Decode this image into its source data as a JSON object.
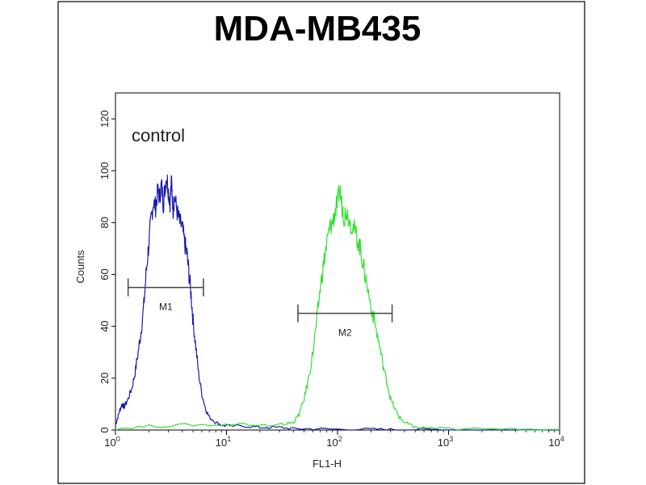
{
  "chart_data": {
    "type": "line",
    "title": "MDA-MB435",
    "xlabel": "FL1-H",
    "ylabel": "Counts",
    "x_scale": "log",
    "xlim": [
      1,
      10000
    ],
    "ylim": [
      0,
      130
    ],
    "x_ticks": [
      {
        "base": "10",
        "exp": "0",
        "value": 1
      },
      {
        "base": "10",
        "exp": "1",
        "value": 10
      },
      {
        "base": "10",
        "exp": "2",
        "value": 100
      },
      {
        "base": "10",
        "exp": "3",
        "value": 1000
      },
      {
        "base": "10",
        "exp": "4",
        "value": 10000
      }
    ],
    "y_ticks": [
      0,
      20,
      40,
      60,
      80,
      100,
      120
    ],
    "annotation": "control",
    "markers": [
      {
        "label": "M1",
        "x_start": 1.3,
        "x_end": 6.2,
        "y": 55
      },
      {
        "label": "M2",
        "x_start": 44,
        "x_end": 310,
        "y": 45
      }
    ],
    "series": [
      {
        "color": "#1a1aa8",
        "x": [
          1.0,
          1.05,
          1.1,
          1.15,
          1.2,
          1.3,
          1.4,
          1.5,
          1.6,
          1.7,
          1.8,
          1.9,
          2.0,
          2.1,
          2.2,
          2.3,
          2.4,
          2.5,
          2.6,
          2.7,
          2.8,
          2.9,
          3.0,
          3.1,
          3.2,
          3.3,
          3.4,
          3.6,
          3.8,
          4.0,
          4.2,
          4.4,
          4.6,
          4.8,
          5.0,
          5.3,
          5.6,
          6.0,
          6.5,
          7.0,
          8.0,
          9.0,
          10,
          15,
          20,
          30,
          40,
          60,
          100,
          200,
          300,
          500,
          1000,
          3000,
          10000
        ],
        "y": [
          2,
          5,
          8,
          10,
          9,
          12,
          16,
          22,
          30,
          38,
          48,
          62,
          72,
          82,
          88,
          86,
          92,
          90,
          95,
          87,
          94,
          98,
          92,
          88,
          96,
          85,
          90,
          84,
          80,
          78,
          72,
          68,
          60,
          52,
          42,
          32,
          22,
          14,
          8,
          5,
          3,
          2,
          1.5,
          1.5,
          1,
          1,
          0.5,
          0.5,
          0.3,
          0.3,
          0.2,
          0.2,
          0.1,
          0.1,
          0.1
        ]
      },
      {
        "color": "#33e033",
        "x": [
          1.0,
          2.0,
          5.0,
          10,
          15,
          20,
          25,
          30,
          35,
          40,
          45,
          50,
          55,
          60,
          65,
          70,
          75,
          80,
          85,
          90,
          95,
          100,
          105,
          110,
          115,
          120,
          130,
          140,
          150,
          160,
          170,
          180,
          200,
          220,
          240,
          260,
          280,
          300,
          330,
          360,
          400,
          450,
          500,
          700,
          1000,
          3000,
          10000
        ],
        "y": [
          0.5,
          1.5,
          2,
          2,
          2.5,
          2,
          1.5,
          2,
          2.5,
          3,
          6,
          12,
          20,
          30,
          42,
          55,
          64,
          72,
          78,
          80,
          84,
          88,
          93,
          86,
          82,
          85,
          80,
          78,
          74,
          70,
          64,
          58,
          48,
          40,
          32,
          24,
          18,
          12,
          8,
          5,
          3,
          2,
          1,
          0.8,
          0.5,
          0.3,
          0.2
        ]
      }
    ]
  }
}
